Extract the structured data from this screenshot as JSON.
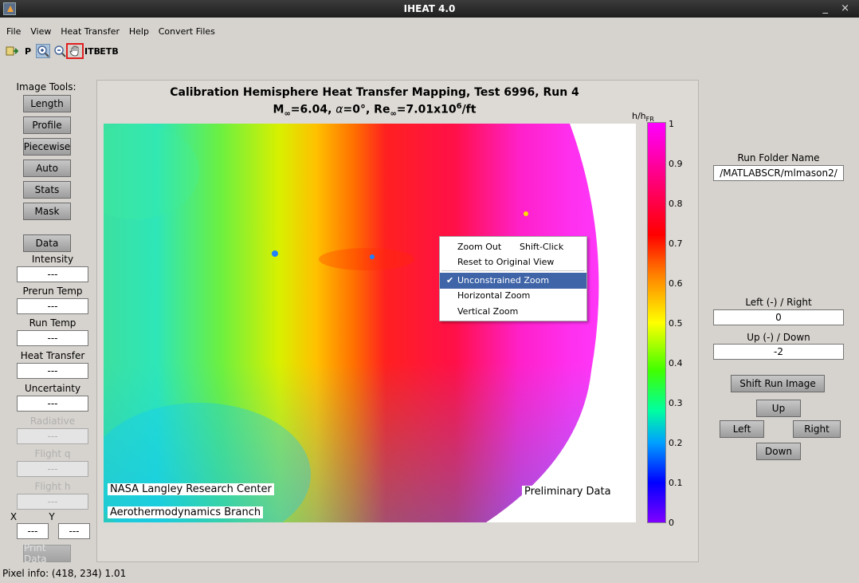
{
  "window": {
    "title": "IHEAT 4.0",
    "controls": "_ ×"
  },
  "menu": [
    "File",
    "View",
    "Heat Transfer",
    "Help",
    "Convert Files"
  ],
  "toolbar": {
    "p_label": "P",
    "itb_label": "ITB",
    "etb_label": "ETB"
  },
  "left_panel": {
    "image_tools_label": "Image Tools:",
    "buttons": [
      "Length",
      "Profile",
      "Piecewise",
      "Auto",
      "Stats",
      "Mask"
    ],
    "data_button": "Data",
    "fields": [
      {
        "label": "Intensity",
        "value": "---"
      },
      {
        "label": "Prerun Temp",
        "value": "---"
      },
      {
        "label": "Run Temp",
        "value": "---"
      },
      {
        "label": "Heat Transfer",
        "value": "---"
      },
      {
        "label": "Uncertainty",
        "value": "---"
      },
      {
        "label": "Radiative",
        "value": "---"
      },
      {
        "label": "Flight q",
        "value": "---"
      },
      {
        "label": "Flight h",
        "value": "---"
      }
    ],
    "x_label": "X",
    "y_label": "Y",
    "x_value": "---",
    "y_value": "---",
    "print_button": "Print Data"
  },
  "plot": {
    "title": "Calibration Hemisphere Heat Transfer Mapping, Test 6996, Run 4",
    "subtitle_parts": {
      "m": "M",
      "m_sub": "∞",
      "m_val": "=6.04, ",
      "alpha": "α",
      "alpha_val": "=0°, Re",
      "re_sub": "∞",
      "re_val": "=7.01x10",
      "exp": "6",
      "tail": "/ft"
    },
    "credit_line1": "NASA Langley Research Center",
    "credit_line2": "Aerothermodynamics Branch",
    "preliminary": "Preliminary Data",
    "colorbar_label": "h/h",
    "colorbar_label_sub": "FR",
    "colorbar_ticks": [
      "1",
      "0.9",
      "0.8",
      "0.7",
      "0.6",
      "0.5",
      "0.4",
      "0.3",
      "0.2",
      "0.1",
      "0"
    ]
  },
  "context_menu": {
    "zoom_out": "Zoom Out",
    "zoom_out_shortcut": "Shift-Click",
    "reset": "Reset to Original View",
    "unconstrained": "Unconstrained Zoom",
    "horizontal": "Horizontal Zoom",
    "vertical": "Vertical Zoom",
    "selected": "Unconstrained Zoom"
  },
  "right_panel": {
    "run_folder_label": "Run Folder Name",
    "run_folder_value": "/MATLABSCR/mlmason2/",
    "lr_label": "Left (-) / Right",
    "lr_value": "0",
    "ud_label": "Up (-) / Down",
    "ud_value": "-2",
    "shift_button": "Shift Run Image",
    "up": "Up",
    "left": "Left",
    "right": "Right",
    "down": "Down"
  },
  "status": "Pixel info: (418, 234)  1.01"
}
